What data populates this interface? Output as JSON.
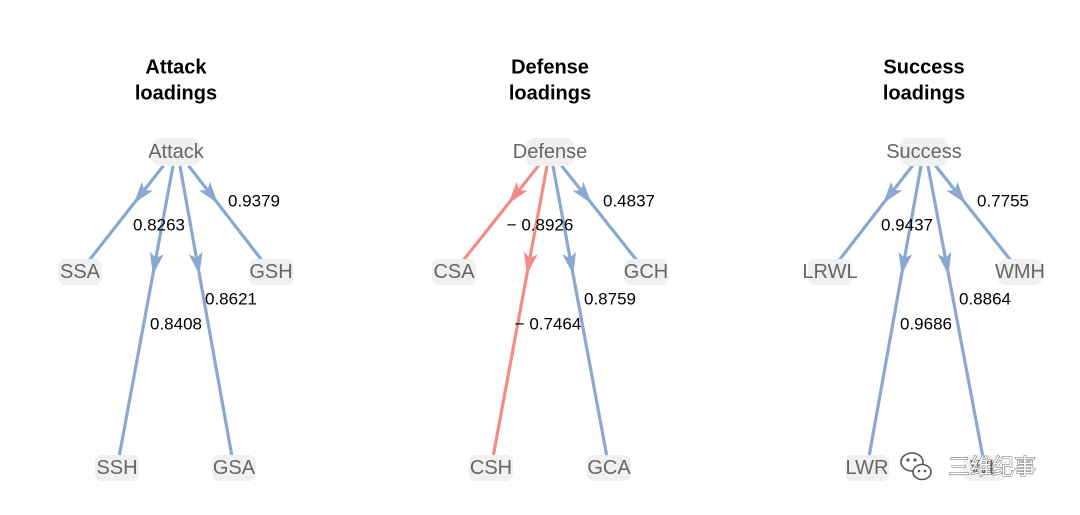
{
  "colors": {
    "positive": "#8ba8d0",
    "negative": "#f38b87",
    "node_text": "#666666",
    "title": "#000000"
  },
  "panels": [
    {
      "title_lines": [
        "Attack",
        "loadings"
      ],
      "root": "Attack",
      "edges": [
        {
          "to": "SSA",
          "loading": 0.8263,
          "label": "0.8263"
        },
        {
          "to": "SSH",
          "loading": 0.8408,
          "label": "0.8408"
        },
        {
          "to": "GSA",
          "loading": 0.8621,
          "label": "0.8621"
        },
        {
          "to": "GSH",
          "loading": 0.9379,
          "label": "0.9379"
        }
      ]
    },
    {
      "title_lines": [
        "Defense",
        "loadings"
      ],
      "root": "Defense",
      "edges": [
        {
          "to": "CSA",
          "loading": -0.8926,
          "label": "− 0.8926"
        },
        {
          "to": "CSH",
          "loading": -0.7464,
          "label": "− 0.7464"
        },
        {
          "to": "GCA",
          "loading": 0.8759,
          "label": "0.8759"
        },
        {
          "to": "GCH",
          "loading": 0.4837,
          "label": "0.4837"
        }
      ]
    },
    {
      "title_lines": [
        "Success",
        "loadings"
      ],
      "root": "Success",
      "edges": [
        {
          "to": "LRWL",
          "loading": 0.9437,
          "label": "0.9437"
        },
        {
          "to": "LWR",
          "loading": 0.9686,
          "label": "0.9686"
        },
        {
          "to": "WL",
          "loading": 0.8864,
          "label": "0.8864"
        },
        {
          "to": "WMH",
          "loading": 0.7755,
          "label": "0.7755"
        }
      ]
    }
  ],
  "watermark": {
    "text": "三维纪事",
    "icon": "wechat-icon"
  }
}
